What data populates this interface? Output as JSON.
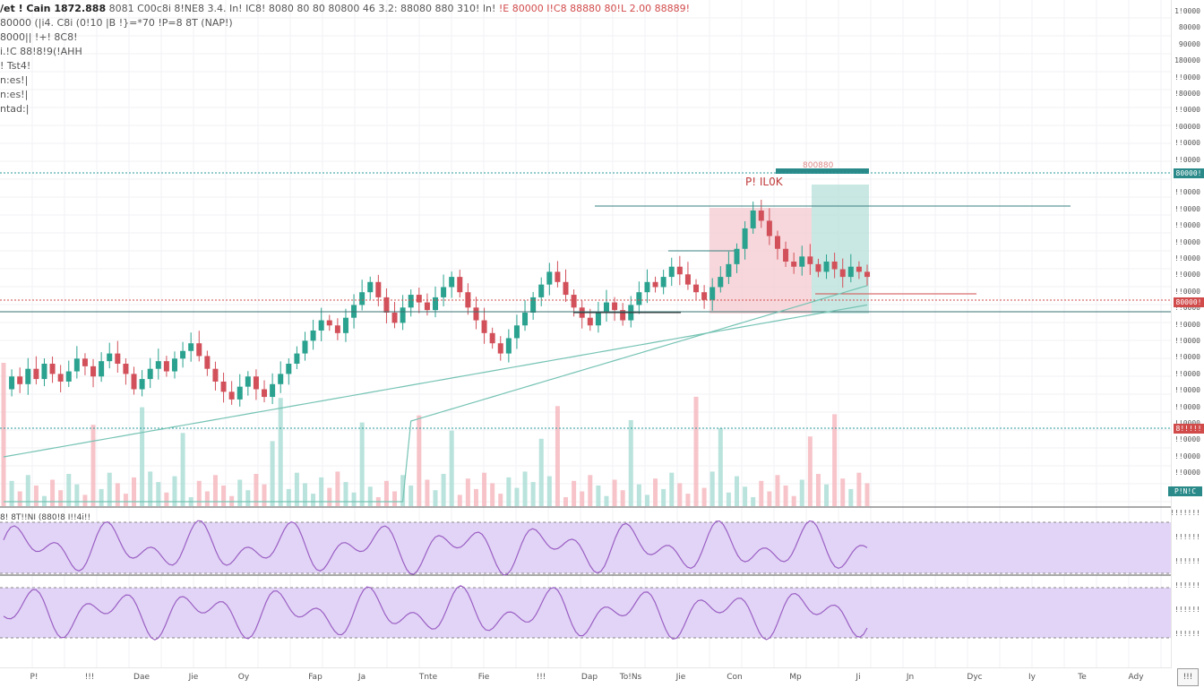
{
  "legend": {
    "title": "/et ! Cain 1872.888",
    "ohlc_line": "8081 C00c8i 8!NE8 3.4. In! IC8! 8080 80 80 80800 46 3.2: 88080 880 310! ln!",
    "change_text": "!E 80000 I!C8 88880 80!L 2.00 88889!",
    "row2": "80000 (|i4. C8i (0!10 |B !}=*70 !P=8 8T (NAP!)",
    "row3": "8000|| !+! 8C8!",
    "row4": "i.!C 88!8!9(!AHH",
    "row5": "! Tst4!",
    "row6": "n:es!|",
    "row7": "n:es!|",
    "row8": "ntad:|"
  },
  "annotation": {
    "text": "P! IL0K",
    "top_label": "800880"
  },
  "osc1_label": "8! 8T!!NI (880!8 I!!4i!!",
  "price_tags": [
    {
      "text": "80000!",
      "color": "#2a8a8a"
    },
    {
      "text": "80000!",
      "color": "#d24b4b"
    },
    {
      "text": "8!!!!!",
      "color": "#d24b4b"
    },
    {
      "text": "P!N!C",
      "color": "#2a8a8a"
    }
  ],
  "axis_prices": [
    "1!0000",
    "80000",
    "90000",
    "180000",
    "!!0000",
    "!80000",
    "!!0000",
    "!00000",
    "!!0000",
    "!!0000",
    "!!0000",
    "!!0000",
    "!!0000",
    "!!0000",
    "!!0000",
    "!!0000",
    "!!0000",
    "!!0000",
    "!!0000",
    "!!0000",
    "!!0000",
    "!!0000",
    "!!0000",
    "!!0000",
    "!!0000",
    "!!0000",
    "!!0000",
    "!!0000",
    "!!0000"
  ],
  "osc_axis": [
    "!!!!!!!",
    "!!!!!!",
    "!!!!!!",
    "!!!!!!",
    "!!!!!!",
    "!!!!!!"
  ],
  "time_labels": [
    "P!",
    "!!!",
    "Dae",
    "Jie",
    "Oy",
    "Fap",
    "Ja",
    "Tnte",
    "Fie",
    "!!!",
    "Dap",
    "To!Ns",
    "Jie",
    "Con",
    "Mp",
    "Ji",
    "Jn",
    "Dyc",
    "Iy",
    "Te",
    "Ady"
  ],
  "corner": "!!!",
  "chart_data": {
    "type": "line",
    "title": "",
    "series": [
      {
        "name": "",
        "values": [
          0.3,
          0.35,
          0.32,
          0.38,
          0.34,
          0.4,
          0.36,
          0.33,
          0.37,
          0.42,
          0.39,
          0.35,
          0.41,
          0.44,
          0.4,
          0.36,
          0.3,
          0.34,
          0.38,
          0.41,
          0.37,
          0.42,
          0.45,
          0.48,
          0.43,
          0.38,
          0.33,
          0.29,
          0.26,
          0.31,
          0.35,
          0.3,
          0.27,
          0.32,
          0.36,
          0.4,
          0.44,
          0.49,
          0.53,
          0.57,
          0.55,
          0.52,
          0.58,
          0.63,
          0.68,
          0.72,
          0.66,
          0.6,
          0.56,
          0.62,
          0.67,
          0.64,
          0.61,
          0.66,
          0.7,
          0.74,
          0.68,
          0.62,
          0.57,
          0.52,
          0.48,
          0.44,
          0.5,
          0.55,
          0.6,
          0.66,
          0.71,
          0.76,
          0.72,
          0.67,
          0.62,
          0.58,
          0.55,
          0.6,
          0.64,
          0.61,
          0.57,
          0.63,
          0.68,
          0.72,
          0.7,
          0.74,
          0.78,
          0.75,
          0.71,
          0.68,
          0.65,
          0.7,
          0.74,
          0.79,
          0.85,
          0.93,
          1.0,
          0.96,
          0.9,
          0.85,
          0.8,
          0.78,
          0.82,
          0.79,
          0.76,
          0.8,
          0.77,
          0.74,
          0.78,
          0.76,
          0.74
        ]
      }
    ]
  }
}
